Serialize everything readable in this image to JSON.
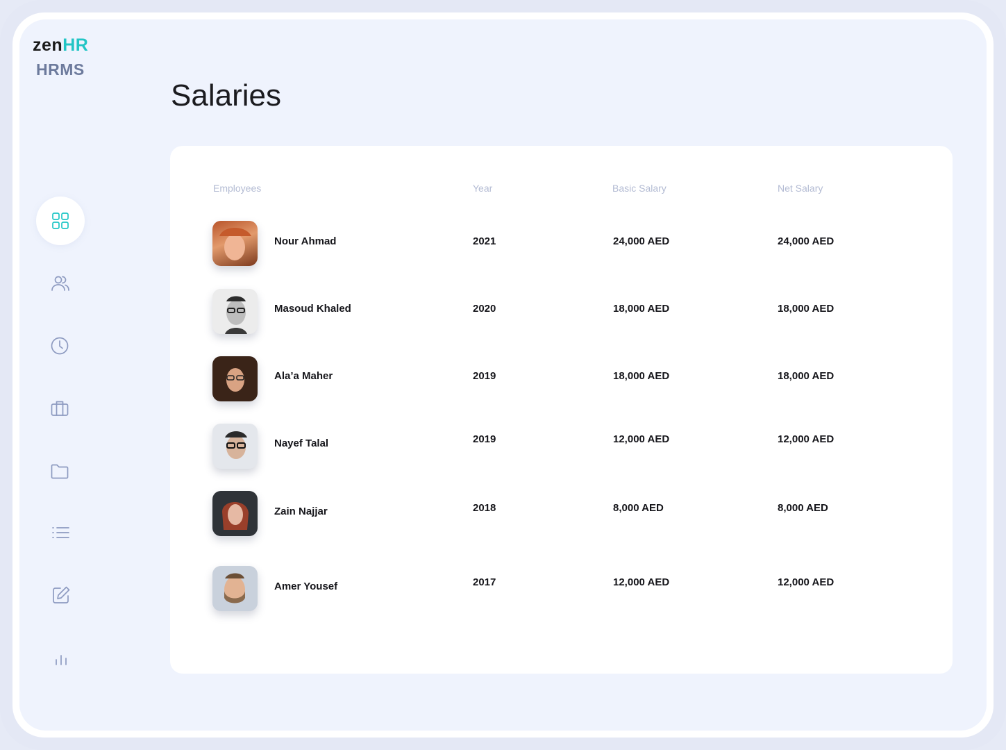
{
  "logo": {
    "brand_zen": "zen",
    "brand_hr": "HR",
    "subtitle": "HRMS"
  },
  "page": {
    "title": "Salaries"
  },
  "sidebar": {
    "items": [
      {
        "icon": "dashboard-grid-icon",
        "active": true
      },
      {
        "icon": "users-icon",
        "active": false
      },
      {
        "icon": "clock-icon",
        "active": false
      },
      {
        "icon": "briefcase-icon",
        "active": false
      },
      {
        "icon": "folder-icon",
        "active": false
      },
      {
        "icon": "list-icon",
        "active": false
      },
      {
        "icon": "edit-icon",
        "active": false
      },
      {
        "icon": "bar-chart-icon",
        "active": false
      }
    ]
  },
  "table": {
    "headers": [
      "Employees",
      "Year",
      "Basic Salary",
      "Net Salary"
    ],
    "rows": [
      {
        "name": "Nour Ahmad",
        "year": "2021",
        "basic": "24,000 AED",
        "net": "24,000 AED"
      },
      {
        "name": "Masoud Khaled",
        "year": "2020",
        "basic": "18,000 AED",
        "net": "18,000 AED"
      },
      {
        "name": "Ala’a Maher",
        "year": "2019",
        "basic": "18,000 AED",
        "net": "18,000 AED"
      },
      {
        "name": "Nayef Talal",
        "year": "2019",
        "basic": "12,000 AED",
        "net": "12,000 AED"
      },
      {
        "name": "Zain Najjar",
        "year": "2018",
        "basic": "8,000 AED",
        "net": "8,000 AED"
      },
      {
        "name": "Amer Yousef",
        "year": "2017",
        "basic": "12,000 AED",
        "net": "12,000 AED"
      }
    ]
  },
  "colors": {
    "accent": "#1fc6c6",
    "icon": "#8d9ac0",
    "background": "#eff3fd"
  }
}
